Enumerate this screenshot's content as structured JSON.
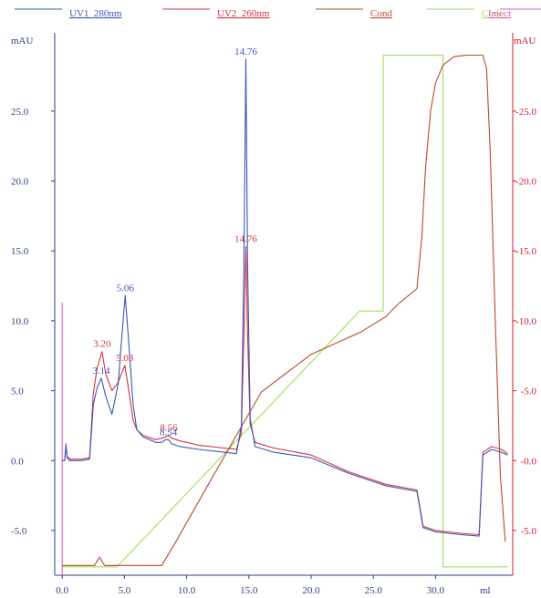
{
  "chart_data": {
    "type": "line",
    "xlabel": "ml",
    "ylabel_left": "mAU",
    "ylabel_right": "mAU",
    "xlim": [
      -0.6,
      36.2
    ],
    "ylim": [
      -8.2,
      30.6
    ],
    "x_ticks": [
      0,
      5,
      10,
      15,
      20,
      25,
      30
    ],
    "x_tick_labels": [
      "0.0",
      "5.0",
      "10.0",
      "15.0",
      "20.0",
      "25.0",
      "30.0"
    ],
    "y_left_ticks": [
      -5,
      0,
      5,
      10,
      15,
      20,
      25
    ],
    "y_left_tick_labels": [
      "-5.0",
      "0.0",
      "5.0",
      "10.0",
      "15.0",
      "20.0",
      "25.0"
    ],
    "y_right_ticks": [
      -5,
      0,
      5,
      10,
      15,
      20,
      25
    ],
    "y_right_tick_labels": [
      "-5.0",
      "-0.0",
      "-5.0",
      "-10.0",
      "-15.0",
      "-20.0",
      "-25.0"
    ],
    "legend_position": "top",
    "series": [
      {
        "name": "UV1_280nm",
        "color": "#3a58b4",
        "x": [
          0,
          0.2,
          0.3,
          0.4,
          0.6,
          1.5,
          2.2,
          2.5,
          2.8,
          3.14,
          3.5,
          4.0,
          4.5,
          4.8,
          5.06,
          5.3,
          5.7,
          6.0,
          6.5,
          7.5,
          8.0,
          8.3,
          8.54,
          8.8,
          9.5,
          11,
          13,
          14.0,
          14.4,
          14.6,
          14.76,
          14.9,
          15.1,
          15.5,
          17,
          20,
          23,
          26,
          28.5,
          29.0,
          30,
          32,
          33.5,
          33.8,
          34.5,
          35.3,
          35.8
        ],
        "y": [
          0,
          0,
          1.2,
          0.2,
          0,
          0,
          0.1,
          4.0,
          5.2,
          5.9,
          4.6,
          3.3,
          5.5,
          9.0,
          11.8,
          9.0,
          4.0,
          2.2,
          1.7,
          1.3,
          1.3,
          1.5,
          1.5,
          1.2,
          1.0,
          0.8,
          0.6,
          0.5,
          2.5,
          14.0,
          28.7,
          14.0,
          3.0,
          1.0,
          0.6,
          0.2,
          -0.9,
          -1.8,
          -2.2,
          -4.8,
          -5.1,
          -5.3,
          -5.4,
          0.4,
          0.8,
          0.6,
          0.4
        ]
      },
      {
        "name": "UV2_260nm",
        "color": "#d3343e",
        "x": [
          0,
          0.2,
          0.3,
          0.4,
          0.6,
          1.5,
          2.2,
          2.5,
          2.8,
          3.2,
          3.5,
          4.0,
          4.5,
          4.8,
          5.03,
          5.3,
          5.7,
          6.0,
          6.5,
          7.5,
          8.0,
          8.3,
          8.56,
          8.8,
          9.5,
          11,
          13,
          14.0,
          14.4,
          14.6,
          14.76,
          14.9,
          15.1,
          15.5,
          17,
          20,
          23,
          26,
          28.5,
          29.0,
          30,
          32,
          33.5,
          33.8,
          34.5,
          35.3,
          35.8
        ],
        "y": [
          0,
          0,
          1.0,
          0.3,
          0.1,
          0.1,
          0.2,
          4.8,
          6.6,
          7.8,
          6.2,
          5.0,
          5.6,
          6.3,
          6.8,
          5.3,
          2.9,
          2.2,
          1.8,
          1.5,
          1.6,
          1.7,
          1.8,
          1.6,
          1.4,
          1.1,
          0.9,
          0.8,
          2.0,
          9.0,
          15.3,
          9.0,
          2.6,
          1.3,
          0.9,
          0.4,
          -0.8,
          -1.7,
          -2.1,
          -4.7,
          -5.0,
          -5.2,
          -5.3,
          0.6,
          1.0,
          0.8,
          0.5
        ]
      },
      {
        "name": "Cond",
        "color": "#b84a2a",
        "x": [
          0,
          2.6,
          3.0,
          3.4,
          8.0,
          9.0,
          12,
          16,
          20,
          24,
          26,
          27,
          28.5,
          28.9,
          29.2,
          29.6,
          30.0,
          30.6,
          31.5,
          32.5,
          33.8,
          34.1,
          34.4,
          34.8,
          35.2,
          35.6
        ],
        "y": [
          -7.5,
          -7.5,
          -6.9,
          -7.5,
          -7.5,
          -6.0,
          -1.3,
          4.9,
          7.6,
          9.2,
          10.3,
          11.2,
          12.3,
          16.0,
          21.0,
          25.0,
          27.0,
          28.3,
          28.9,
          29.0,
          29.0,
          28.0,
          22.0,
          10.0,
          -1.0,
          -5.8
        ]
      },
      {
        "name": "Conc",
        "color": "#9fdd5e",
        "x": [
          0,
          4.4,
          23.9,
          25.8,
          25.8,
          30.6,
          30.6,
          35.8
        ],
        "y": [
          -7.6,
          -7.6,
          10.7,
          10.7,
          29.0,
          29.0,
          -7.6,
          -7.6
        ]
      },
      {
        "name": "Inject",
        "color": "#e25cb8",
        "x": [
          0,
          0
        ],
        "y": [
          -8.2,
          11.3
        ]
      }
    ],
    "peak_labels": [
      {
        "text": "3.14",
        "x": 3.14,
        "y": 5.9,
        "series": "UV1_280nm"
      },
      {
        "text": "3.20",
        "x": 3.2,
        "y": 7.8,
        "series": "UV2_260nm"
      },
      {
        "text": "5.06",
        "x": 5.06,
        "y": 11.8,
        "series": "UV1_280nm"
      },
      {
        "text": "5.03",
        "x": 5.03,
        "y": 6.8,
        "series": "UV2_260nm"
      },
      {
        "text": "8.56",
        "x": 8.56,
        "y": 1.8,
        "series": "UV2_260nm"
      },
      {
        "text": "8.54",
        "x": 8.54,
        "y": 1.5,
        "series": "UV1_280nm"
      },
      {
        "text": "14.76",
        "x": 14.76,
        "y": 28.7,
        "series": "UV1_280nm"
      },
      {
        "text": "14.76",
        "x": 14.76,
        "y": 15.3,
        "series": "UV2_260nm"
      }
    ]
  }
}
